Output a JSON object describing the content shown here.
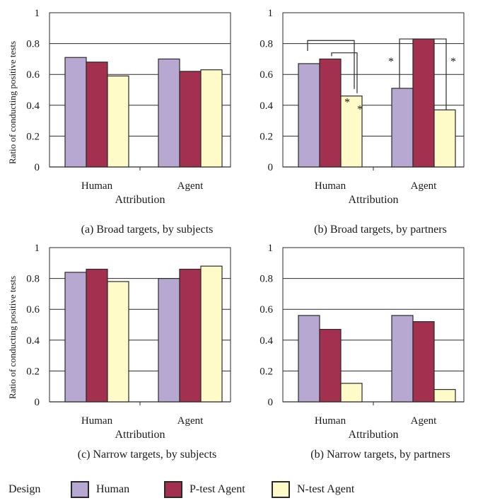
{
  "colors": {
    "Human": "#b7a8d2",
    "P-test Agent": "#a3304f",
    "N-test Agent": "#fffbc8",
    "grid": "#2a2a2a",
    "bar_stroke": "#2a2a2a"
  },
  "legend": {
    "title": "Design",
    "items": [
      "Human",
      "P-test Agent",
      "N-test Agent"
    ]
  },
  "captions": [
    "(a) Broad targets, by subjects",
    "(b) Broad targets, by partners",
    "(c) Narrow targets, by subjects",
    "(b) Narrow targets, by partners"
  ],
  "ylabels": [
    "Ratio of conducting positive tests",
    "",
    "Ratio of conducting positive tests",
    ""
  ],
  "chart_data": [
    {
      "type": "bar",
      "title": "(a) Broad targets, by subjects",
      "xlabel": "Attribution",
      "ylabel": "Ratio of conducting positive tests",
      "categories": [
        "Human",
        "Agent"
      ],
      "series": [
        {
          "name": "Human",
          "values": [
            0.71,
            0.7
          ]
        },
        {
          "name": "P-test Agent",
          "values": [
            0.68,
            0.62
          ]
        },
        {
          "name": "N-test Agent",
          "values": [
            0.59,
            0.63
          ]
        }
      ],
      "ylim": [
        0,
        1
      ],
      "yticks": [
        "0",
        "0.2",
        "0.4",
        "0.6",
        "0.8",
        "1"
      ],
      "grid": true,
      "annotations": []
    },
    {
      "type": "bar",
      "title": "(b) Broad targets, by partners",
      "xlabel": "Attribution",
      "ylabel": "",
      "categories": [
        "Human",
        "Agent"
      ],
      "series": [
        {
          "name": "Human",
          "values": [
            0.67,
            0.51
          ]
        },
        {
          "name": "P-test Agent",
          "values": [
            0.7,
            0.83
          ]
        },
        {
          "name": "N-test Agent",
          "values": [
            0.46,
            0.37
          ]
        }
      ],
      "ylim": [
        0,
        1
      ],
      "yticks": [
        "0",
        "0.2",
        "0.4",
        "0.6",
        "0.8",
        "1"
      ],
      "grid": true,
      "annotations": [
        "*",
        "*",
        "*",
        "*"
      ]
    },
    {
      "type": "bar",
      "title": "(c) Narrow targets, by subjects",
      "xlabel": "Attribution",
      "ylabel": "Ratio of conducting positive tests",
      "categories": [
        "Human",
        "Agent"
      ],
      "series": [
        {
          "name": "Human",
          "values": [
            0.84,
            0.8
          ]
        },
        {
          "name": "P-test Agent",
          "values": [
            0.86,
            0.86
          ]
        },
        {
          "name": "N-test Agent",
          "values": [
            0.78,
            0.88
          ]
        }
      ],
      "ylim": [
        0,
        1
      ],
      "yticks": [
        "0",
        "0.2",
        "0.4",
        "0.6",
        "0.8",
        "1"
      ],
      "grid": true,
      "annotations": []
    },
    {
      "type": "bar",
      "title": "(b) Narrow targets, by partners",
      "xlabel": "Attribution",
      "ylabel": "",
      "categories": [
        "Human",
        "Agent"
      ],
      "series": [
        {
          "name": "Human",
          "values": [
            0.56,
            0.56
          ]
        },
        {
          "name": "P-test Agent",
          "values": [
            0.47,
            0.52
          ]
        },
        {
          "name": "N-test Agent",
          "values": [
            0.12,
            0.08
          ]
        }
      ],
      "ylim": [
        0,
        1
      ],
      "yticks": [
        "0",
        "0.2",
        "0.4",
        "0.6",
        "0.8",
        "1"
      ],
      "grid": true,
      "annotations": []
    }
  ]
}
